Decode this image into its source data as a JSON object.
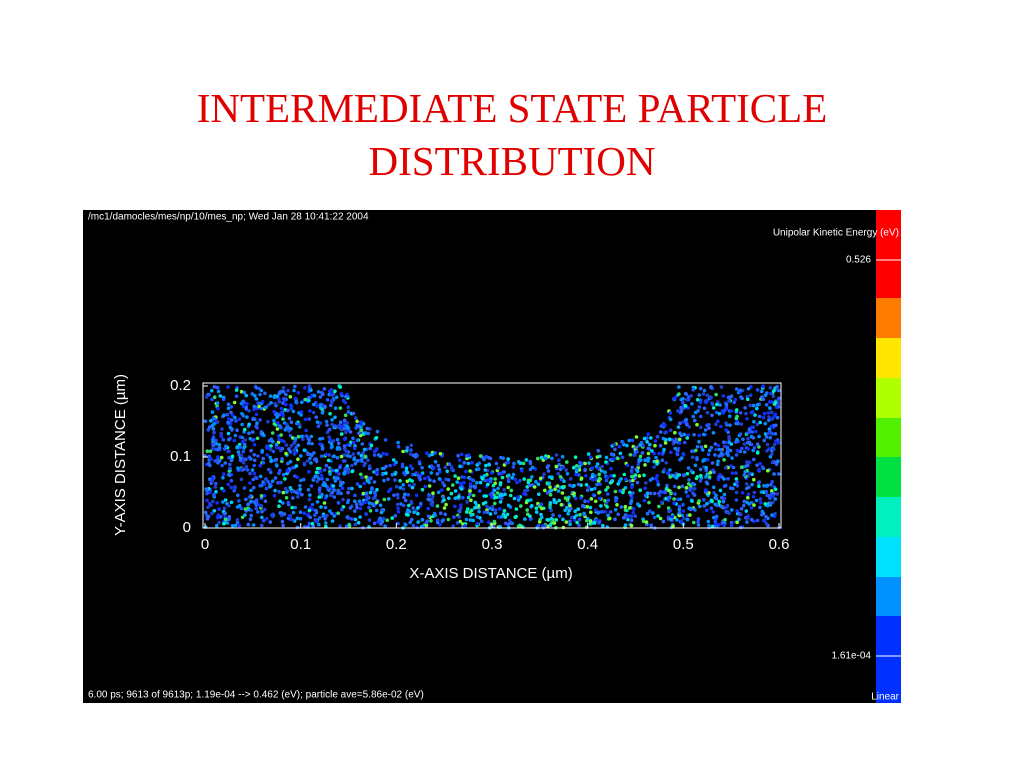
{
  "title": "INTERMEDIATE STATE PARTICLE DISTRIBUTION",
  "plot": {
    "header": "/mc1/damocles/mes/np/10/mes_np; Wed Jan 28 10:41:22 2004",
    "energy_label": "Unipolar Kinetic Energy  (eV)",
    "colorbar_max": "0.526",
    "colorbar_min": "1.61e-04",
    "colorbar_scale": "Linear",
    "footer": "6.00 ps; 9613 of 9613p; 1.19e-04 --> 0.462 (eV); particle ave=5.86e-02 (eV)",
    "x_axis_label": "X-AXIS DISTANCE  (µm)",
    "y_axis_label": "Y-AXIS DISTANCE  (µm)",
    "x_ticks": [
      "0",
      "0.1",
      "0.2",
      "0.3",
      "0.4",
      "0.5",
      "0.6"
    ],
    "y_ticks": [
      "0",
      "0.1",
      "0.2"
    ]
  }
}
